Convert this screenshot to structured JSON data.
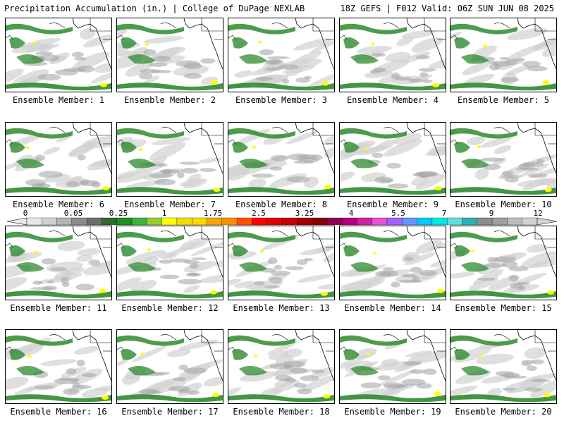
{
  "header": {
    "title_left": "Precipitation Accumulation (in.) | College of DuPage NEXLAB",
    "title_right": "18Z GEFS | F012 Valid: 06Z SUN JUN 08 2025"
  },
  "panels": [
    {
      "label": "Ensemble Member: 1"
    },
    {
      "label": "Ensemble Member: 2"
    },
    {
      "label": "Ensemble Member: 3"
    },
    {
      "label": "Ensemble Member: 4"
    },
    {
      "label": "Ensemble Member: 5"
    },
    {
      "label": "Ensemble Member: 6"
    },
    {
      "label": "Ensemble Member: 7"
    },
    {
      "label": "Ensemble Member: 8"
    },
    {
      "label": "Ensemble Member: 9"
    },
    {
      "label": "Ensemble Member: 10"
    },
    {
      "label": "Ensemble Member: 11"
    },
    {
      "label": "Ensemble Member: 12"
    },
    {
      "label": "Ensemble Member: 13"
    },
    {
      "label": "Ensemble Member: 14"
    },
    {
      "label": "Ensemble Member: 15"
    },
    {
      "label": "Ensemble Member: 16"
    },
    {
      "label": "Ensemble Member: 17"
    },
    {
      "label": "Ensemble Member: 18"
    },
    {
      "label": "Ensemble Member: 19"
    },
    {
      "label": "Ensemble Member: 20"
    }
  ],
  "colorbar": {
    "tick_labels": [
      "0",
      "0.05",
      "0.25",
      "1",
      "1.75",
      "2.5",
      "3.25",
      "4",
      "5.5",
      "7",
      "9",
      "12"
    ],
    "colors": [
      "#e8e8e8",
      "#d0d0d0",
      "#b4b4b4",
      "#8c8c8c",
      "#6e6e6e",
      "#2e6b2e",
      "#1f8f1f",
      "#3cb43c",
      "#9acd32",
      "#ffff00",
      "#f0e000",
      "#ffd700",
      "#ffa500",
      "#ff8c00",
      "#ff5000",
      "#ff0000",
      "#e00000",
      "#c80000",
      "#a00000",
      "#8b0000",
      "#900050",
      "#b4007d",
      "#d21eaa",
      "#e650dc",
      "#a064ff",
      "#6496ff",
      "#00c8ff",
      "#00e6e6",
      "#64dcdc",
      "#28b4b4",
      "#8c8c8c",
      "#a0a0a0",
      "#bebebe",
      "#d2d2d2"
    ]
  },
  "colors": {
    "precip_light": "#d2d2d2",
    "precip_mid": "#a8a8a8",
    "precip_green": "#2e8b2e",
    "precip_yellow": "#ffff00",
    "coastline": "#000000"
  }
}
